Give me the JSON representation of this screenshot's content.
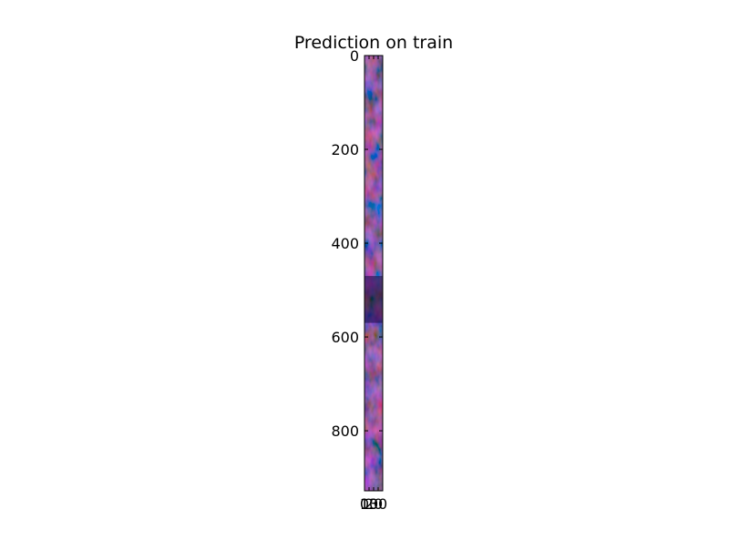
{
  "chart_data": {
    "type": "heatmap",
    "title": "Prediction on train",
    "xlabel": "",
    "ylabel": "",
    "image_shape": [
      928,
      40
    ],
    "ylim": [
      928,
      0
    ],
    "xlim": [
      0,
      40
    ],
    "y_ticks": [
      0,
      200,
      400,
      600,
      800
    ],
    "y_tick_labels": [
      "0",
      "200",
      "400",
      "600",
      "800"
    ],
    "x_ticks": [
      0,
      10,
      20,
      30
    ],
    "x_tick_labels": [
      "0",
      "10",
      "20",
      "30"
    ],
    "grid": false,
    "colormap_colors": [
      "#0b0736",
      "#27238a",
      "#4a4aba",
      "#7a2a2a",
      "#a83a30",
      "#3a0a10"
    ]
  }
}
